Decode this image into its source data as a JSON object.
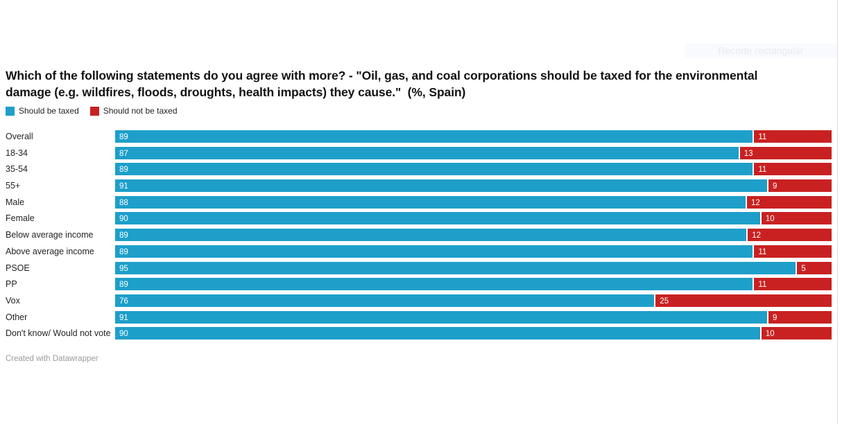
{
  "overlay": {
    "label": "Recorte rectangular"
  },
  "header": {
    "title": "Which of the following statements do you agree with more? - \"Oil, gas, and coal corporations should be taxed for the environmental damage (e.g. wildfires, floods, droughts, health impacts) they cause.\"  (%, Spain)"
  },
  "legend": [
    {
      "label": "Should be taxed",
      "color": "#1D9FCA"
    },
    {
      "label": "Should not be taxed",
      "color": "#C92121"
    }
  ],
  "colors": {
    "blue": "#1D9FCA",
    "red": "#C92121",
    "title_text": "#131313",
    "label_text": "#242424",
    "footer_text": "#9b9b9b",
    "divider": "#d7dade"
  },
  "chart_data": {
    "type": "bar",
    "subtype": "horizontal-stacked-normalized",
    "title": "Which of the following statements do you agree with more? - \"Oil, gas, and coal corporations should be taxed for the environmental damage (e.g. wildfires, floods, droughts, health impacts) they cause.\"  (%, Spain)",
    "unit": "%",
    "legend_position": "top-left",
    "grid": false,
    "categories": [
      "Overall",
      "18-34",
      "35-54",
      "55+",
      "Male",
      "Female",
      "Below average income",
      "Above average income",
      "PSOE",
      "PP",
      "Vox",
      "Other",
      "Don't know/ Would not vote"
    ],
    "series": [
      {
        "name": "Should be taxed",
        "color": "#1D9FCA",
        "values": [
          89,
          87,
          89,
          91,
          88,
          90,
          89,
          89,
          95,
          89,
          76,
          91,
          90
        ]
      },
      {
        "name": "Should not be taxed",
        "color": "#C92121",
        "values": [
          11,
          13,
          11,
          9,
          12,
          10,
          12,
          11,
          5,
          11,
          25,
          9,
          10
        ]
      }
    ]
  },
  "footer": {
    "credit": "Created with Datawrapper"
  }
}
